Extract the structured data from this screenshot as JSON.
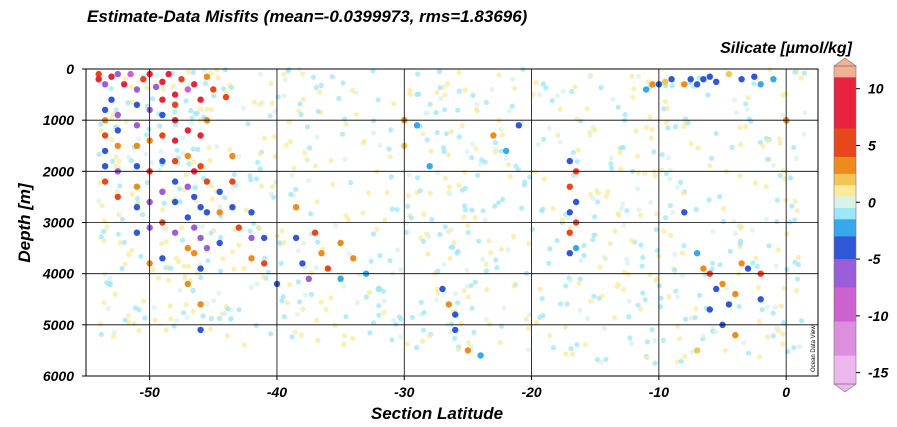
{
  "chart_data": {
    "type": "scatter",
    "title": "Estimate-Data Misfits (mean=-0.0399973, rms=1.83696)",
    "xlabel": "Section Latitude",
    "ylabel": "Depth [m]",
    "colorbar_label": "Silicate [µmol/kg]",
    "watermark": "Ocean Data View",
    "xlim": [
      -55,
      2.5
    ],
    "ylim": [
      6000,
      0
    ],
    "x_ticks": [
      -50,
      -40,
      -30,
      -20,
      -10,
      0
    ],
    "x_tick_labels": [
      "-50",
      "-40",
      "-30",
      "-20",
      "-10",
      "0"
    ],
    "y_ticks": [
      0,
      1000,
      2000,
      3000,
      4000,
      5000,
      6000
    ],
    "y_tick_labels": [
      "0",
      "1000",
      "2000",
      "3000",
      "4000",
      "5000",
      "6000"
    ],
    "color_range": [
      -16,
      12
    ],
    "colorbar_ticks": [
      10,
      5,
      0,
      -5,
      -10,
      -15
    ],
    "colorbar_tick_labels": [
      "10",
      "5",
      "0",
      "-5",
      "-10",
      "-15"
    ],
    "grid": true,
    "colors": {
      "c-16": "#ebb7ec",
      "c-12": "#dc8fdc",
      "c-9": "#cc62d0",
      "c-6": "#9a5fd8",
      "c-4": "#2f57d6",
      "c-2": "#37a8ec",
      "c-1": "#9ee6f5",
      "c0": "#d9f2ea",
      "c1": "#f9ea9e",
      "c2": "#f2c656",
      "c3": "#ed8b1b",
      "c5": "#e8461d",
      "c8": "#e7233d",
      "c12": "#f4b093"
    },
    "series": [
      {
        "values": [
          [
            -54,
            100,
            4
          ],
          [
            -54,
            200,
            7
          ],
          [
            -53.5,
            300,
            -5
          ],
          [
            -53,
            150,
            9
          ],
          [
            -53,
            600,
            -4
          ],
          [
            -52.5,
            100,
            -7
          ],
          [
            -52,
            300,
            8
          ],
          [
            -51.5,
            100,
            -8
          ],
          [
            -51,
            400,
            -7
          ],
          [
            -50.5,
            200,
            6
          ],
          [
            -50,
            100,
            9
          ],
          [
            -49.5,
            350,
            -6
          ],
          [
            -49,
            250,
            10
          ],
          [
            -48.5,
            100,
            8
          ],
          [
            -48,
            500,
            7
          ],
          [
            -47.5,
            200,
            6
          ],
          [
            -47,
            400,
            -8
          ],
          [
            -46.5,
            300,
            10
          ],
          [
            -46,
            600,
            7
          ],
          [
            -45.5,
            150,
            3
          ],
          [
            -45,
            400,
            5
          ],
          [
            -44,
            550,
            6
          ],
          [
            -53.5,
            800,
            -4
          ],
          [
            -53.5,
            1000,
            3
          ],
          [
            -53.5,
            1300,
            4
          ],
          [
            -53.5,
            1600,
            -3
          ],
          [
            -53.5,
            1900,
            -4
          ],
          [
            -53.5,
            2200,
            5
          ],
          [
            -52.5,
            900,
            -5
          ],
          [
            -52.5,
            1200,
            -4
          ],
          [
            -52.5,
            1500,
            3
          ],
          [
            -52.5,
            2000,
            -5
          ],
          [
            -52.5,
            2500,
            4
          ],
          [
            -51,
            700,
            -4
          ],
          [
            -51,
            1100,
            -5
          ],
          [
            -51,
            1500,
            3
          ],
          [
            -51,
            1900,
            -4
          ],
          [
            -51,
            2300,
            3
          ],
          [
            -51,
            2700,
            -4
          ],
          [
            -51,
            3200,
            -4
          ],
          [
            -50,
            800,
            -5
          ],
          [
            -50,
            1400,
            3
          ],
          [
            -50,
            2000,
            4
          ],
          [
            -50,
            2600,
            -5
          ],
          [
            -50,
            3100,
            -6
          ],
          [
            -50,
            3800,
            3
          ],
          [
            -49,
            600,
            8
          ],
          [
            -49,
            900,
            -4
          ],
          [
            -49,
            1300,
            5
          ],
          [
            -49,
            1800,
            -4
          ],
          [
            -49,
            2400,
            -5
          ],
          [
            -49,
            3000,
            4
          ],
          [
            -49,
            3700,
            -4
          ],
          [
            -48,
            700,
            5
          ],
          [
            -48,
            1000,
            8
          ],
          [
            -48,
            1400,
            7
          ],
          [
            -48,
            1800,
            6
          ],
          [
            -48,
            2200,
            -4
          ],
          [
            -48,
            2600,
            -4
          ],
          [
            -48,
            3200,
            -5
          ],
          [
            -47,
            1200,
            8
          ],
          [
            -47,
            1700,
            3
          ],
          [
            -47,
            2300,
            -5
          ],
          [
            -47,
            2900,
            -4
          ],
          [
            -47,
            3500,
            3
          ],
          [
            -47,
            4200,
            3
          ],
          [
            -46.5,
            2000,
            7
          ],
          [
            -46.5,
            2500,
            -4
          ],
          [
            -46.5,
            3100,
            -5
          ],
          [
            -46.5,
            3600,
            3
          ],
          [
            -46,
            1300,
            7
          ],
          [
            -46,
            1900,
            5
          ],
          [
            -46,
            2700,
            -4
          ],
          [
            -46,
            3300,
            -5
          ],
          [
            -46,
            3900,
            -4
          ],
          [
            -46,
            4600,
            3
          ],
          [
            -46,
            5100,
            -4
          ],
          [
            -45.5,
            1000,
            3
          ],
          [
            -45.5,
            2200,
            5
          ],
          [
            -45.5,
            2800,
            -4
          ],
          [
            -45.5,
            3500,
            -5
          ],
          [
            -44.5,
            2400,
            -4
          ],
          [
            -44.5,
            2800,
            3
          ],
          [
            -44.5,
            3400,
            -4
          ],
          [
            -43.5,
            1700,
            3
          ],
          [
            -43.5,
            2200,
            5
          ],
          [
            -43.5,
            2700,
            -4
          ],
          [
            -43,
            3100,
            5
          ],
          [
            -42,
            2800,
            -4
          ],
          [
            -42,
            3300,
            -5
          ],
          [
            -42,
            3700,
            3
          ],
          [
            -41,
            3300,
            -4
          ],
          [
            -41,
            3800,
            5
          ],
          [
            -40,
            4200,
            -4
          ],
          [
            -38.5,
            2700,
            3
          ],
          [
            -38.5,
            3300,
            -4
          ],
          [
            -38,
            3800,
            -4
          ],
          [
            -37.5,
            4100,
            -5
          ],
          [
            -37,
            3200,
            5
          ],
          [
            -36.5,
            3600,
            3
          ],
          [
            -36,
            3900,
            4
          ],
          [
            -35,
            3400,
            3
          ],
          [
            -35,
            4100,
            -2
          ],
          [
            -34,
            3700,
            3
          ],
          [
            -33,
            4000,
            -2
          ],
          [
            -32,
            4300,
            -1
          ],
          [
            -30,
            1000,
            3
          ],
          [
            -30,
            1500,
            2
          ],
          [
            -29,
            1100,
            -2
          ],
          [
            -28,
            1900,
            -2
          ],
          [
            -27,
            4300,
            -4
          ],
          [
            -26.5,
            4600,
            3
          ],
          [
            -26,
            5100,
            -4
          ],
          [
            -26,
            4800,
            -3
          ],
          [
            -25,
            5500,
            3
          ],
          [
            -24,
            5600,
            -2
          ],
          [
            -23,
            1300,
            3
          ],
          [
            -22,
            1600,
            -2
          ],
          [
            -21,
            1100,
            -3
          ],
          [
            -17,
            1800,
            -4
          ],
          [
            -17,
            2300,
            4
          ],
          [
            -17,
            2800,
            -4
          ],
          [
            -17,
            3200,
            5
          ],
          [
            -17,
            3600,
            -3
          ],
          [
            -16.5,
            2000,
            5
          ],
          [
            -16.5,
            2600,
            -4
          ],
          [
            -16.5,
            3000,
            4
          ],
          [
            -16.5,
            3500,
            -2
          ],
          [
            -11,
            400,
            -2
          ],
          [
            -10.5,
            300,
            3
          ],
          [
            -10,
            300,
            -4
          ],
          [
            -9.5,
            250,
            2
          ],
          [
            -9,
            200,
            -3
          ],
          [
            -8,
            300,
            3
          ],
          [
            -7.5,
            200,
            -4
          ],
          [
            -7,
            300,
            -3
          ],
          [
            -6.5,
            200,
            -4
          ],
          [
            -6,
            150,
            -4
          ],
          [
            -5.5,
            250,
            -3
          ],
          [
            -4.5,
            100,
            2
          ],
          [
            -3.5,
            200,
            -3
          ],
          [
            -2.5,
            150,
            -4
          ],
          [
            -2,
            300,
            -2
          ],
          [
            -1,
            200,
            -2
          ],
          [
            0,
            1000,
            3
          ],
          [
            -8,
            2800,
            -4
          ],
          [
            -7,
            3600,
            -2
          ],
          [
            -6.5,
            3900,
            3
          ],
          [
            -6,
            4000,
            4
          ],
          [
            -5.5,
            4300,
            -4
          ],
          [
            -5,
            4200,
            3
          ],
          [
            -4.5,
            4600,
            -4
          ],
          [
            -4,
            4400,
            3
          ],
          [
            -3.5,
            3800,
            3
          ],
          [
            -3,
            3900,
            -3
          ],
          [
            -2,
            4500,
            -4
          ],
          [
            -2,
            4000,
            4
          ],
          [
            -6,
            4700,
            -4
          ],
          [
            -5,
            5000,
            -3
          ],
          [
            -7,
            5500,
            2
          ],
          [
            -4,
            5200,
            3
          ]
        ]
      }
    ]
  }
}
